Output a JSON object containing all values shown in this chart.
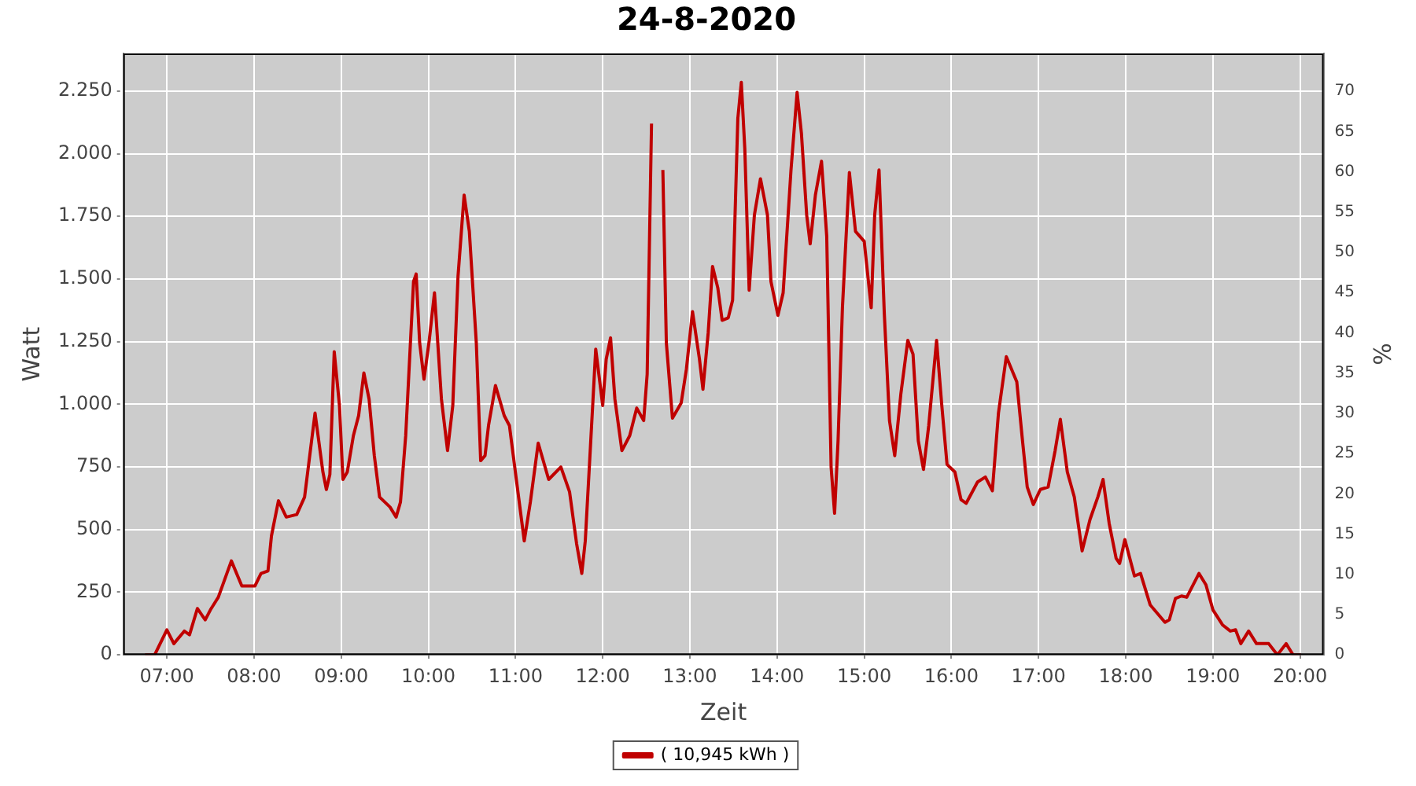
{
  "chart_data": {
    "type": "line",
    "title": "24-8-2020",
    "xlabel": "Zeit",
    "ylabel": "Watt",
    "y2label": "%",
    "xlim": [
      6.5,
      20.27
    ],
    "xticks": [
      {
        "value": 7,
        "label": "07:00"
      },
      {
        "value": 8,
        "label": "08:00"
      },
      {
        "value": 9,
        "label": "09:00"
      },
      {
        "value": 10,
        "label": "10:00"
      },
      {
        "value": 11,
        "label": "11:00"
      },
      {
        "value": 12,
        "label": "12:00"
      },
      {
        "value": 13,
        "label": "13:00"
      },
      {
        "value": 14,
        "label": "14:00"
      },
      {
        "value": 15,
        "label": "15:00"
      },
      {
        "value": 16,
        "label": "16:00"
      },
      {
        "value": 17,
        "label": "17:00"
      },
      {
        "value": 18,
        "label": "18:00"
      },
      {
        "value": 19,
        "label": "19:00"
      },
      {
        "value": 20,
        "label": "20:00"
      }
    ],
    "ylim": [
      0,
      2400
    ],
    "yticks": [
      0,
      250,
      500,
      750,
      {
        "value": 1000,
        "label": "1.000"
      },
      {
        "value": 1250,
        "label": "1.250"
      },
      {
        "value": 1500,
        "label": "1.500"
      },
      {
        "value": 1750,
        "label": "1.750"
      },
      {
        "value": 2000,
        "label": "2.000"
      },
      {
        "value": 2250,
        "label": "2.250"
      }
    ],
    "y2lim": [
      0,
      74.7
    ],
    "y2ticks": [
      0,
      5,
      10,
      15,
      20,
      25,
      30,
      35,
      40,
      45,
      50,
      55,
      60,
      65,
      70
    ],
    "grid": true,
    "legend": "bottom",
    "marker": "none",
    "line_style": "solid",
    "series": [
      {
        "name": "( 10,945 kWh )",
        "color": "#c00000",
        "x": [
          6.75,
          6.86,
          7.0,
          7.08,
          7.2,
          7.26,
          7.35,
          7.44,
          7.5,
          7.59,
          7.74,
          7.86,
          8.01,
          8.08,
          8.16,
          8.2,
          8.28,
          8.37,
          8.49,
          8.58,
          8.7,
          8.79,
          8.83,
          8.87,
          8.92,
          8.98,
          9.02,
          9.07,
          9.14,
          9.2,
          9.26,
          9.32,
          9.38,
          9.44,
          9.56,
          9.63,
          9.68,
          9.74,
          9.83,
          9.86,
          9.9,
          9.95,
          10.01,
          10.07,
          10.15,
          10.22,
          10.28,
          10.34,
          10.41,
          10.47,
          10.55,
          10.6,
          10.65,
          10.69,
          10.77,
          10.87,
          10.93,
          11.02,
          11.1,
          11.17,
          11.26,
          11.38,
          11.52,
          11.62,
          11.7,
          11.76,
          11.8,
          11.86,
          11.92,
          12.0,
          12.04,
          12.09,
          12.14,
          12.22,
          12.31,
          12.39,
          12.47,
          12.51,
          12.56,
          12.6,
          12.65,
          12.69,
          12.73,
          12.8,
          12.9,
          12.96,
          13.03,
          13.11,
          13.15,
          13.21,
          13.26,
          13.32,
          13.37,
          13.44,
          13.49,
          13.55,
          13.59,
          13.63,
          13.68,
          13.74,
          13.81,
          13.89,
          13.93,
          14.01,
          14.07,
          14.16,
          14.23,
          14.28,
          14.34,
          14.38,
          14.44,
          14.51,
          14.57,
          14.62,
          14.66,
          14.7,
          14.75,
          14.83,
          14.9,
          15.0,
          15.08,
          15.12,
          15.17,
          15.23,
          15.29,
          15.35,
          15.42,
          15.5,
          15.56,
          15.62,
          15.68,
          15.74,
          15.83,
          15.89,
          15.95,
          16.04,
          16.11,
          16.17,
          16.3,
          16.39,
          16.47,
          16.54,
          16.63,
          16.75,
          16.81,
          16.87,
          16.94,
          17.02,
          17.11,
          17.19,
          17.25,
          17.33,
          17.41,
          17.5,
          17.59,
          17.68,
          17.74,
          17.81,
          17.89,
          17.93,
          17.99,
          18.1,
          18.17,
          18.28,
          18.45,
          18.5,
          18.57,
          18.64,
          18.7,
          18.84,
          18.92,
          19.0,
          19.11,
          19.2,
          19.26,
          19.32,
          19.41,
          19.5,
          19.64,
          19.74,
          19.84,
          19.92,
          20.01
        ],
        "values": [
          0,
          0,
          100,
          45,
          95,
          80,
          185,
          140,
          180,
          230,
          375,
          275,
          275,
          325,
          335,
          475,
          615,
          550,
          560,
          630,
          965,
          730,
          660,
          720,
          1210,
          995,
          700,
          730,
          875,
          955,
          1125,
          1020,
          795,
          630,
          590,
          550,
          610,
          875,
          1490,
          1520,
          1245,
          1100,
          1255,
          1445,
          1020,
          815,
          995,
          1510,
          1835,
          1690,
          1245,
          775,
          795,
          915,
          1075,
          955,
          915,
          670,
          455,
          610,
          845,
          700,
          750,
          650,
          445,
          325,
          455,
          835,
          1220,
          995,
          1180,
          1265,
          1020,
          815,
          875,
          985,
          935,
          1120,
          2120,
          null,
          null,
          1935,
          1245,
          945,
          1005,
          1140,
          1370,
          1180,
          1060,
          1285,
          1550,
          1465,
          1335,
          1345,
          1415,
          2140,
          2285,
          2020,
          1455,
          1755,
          1900,
          1755,
          1490,
          1355,
          1445,
          1935,
          2245,
          2080,
          1755,
          1640,
          1835,
          1970,
          1670,
          750,
          565,
          855,
          1385,
          1925,
          1690,
          1650,
          1385,
          1755,
          1935,
          1365,
          935,
          795,
          1040,
          1255,
          1200,
          855,
          740,
          915,
          1255,
          995,
          760,
          730,
          620,
          605,
          690,
          710,
          655,
          965,
          1190,
          1090,
          875,
          670,
          600,
          660,
          670,
          815,
          940,
          730,
          630,
          415,
          540,
          630,
          700,
          525,
          385,
          365,
          460,
          315,
          325,
          200,
          130,
          140,
          225,
          235,
          230,
          325,
          280,
          180,
          120,
          95,
          100,
          45,
          95,
          45,
          45,
          0,
          45,
          0,
          0
        ]
      }
    ]
  }
}
